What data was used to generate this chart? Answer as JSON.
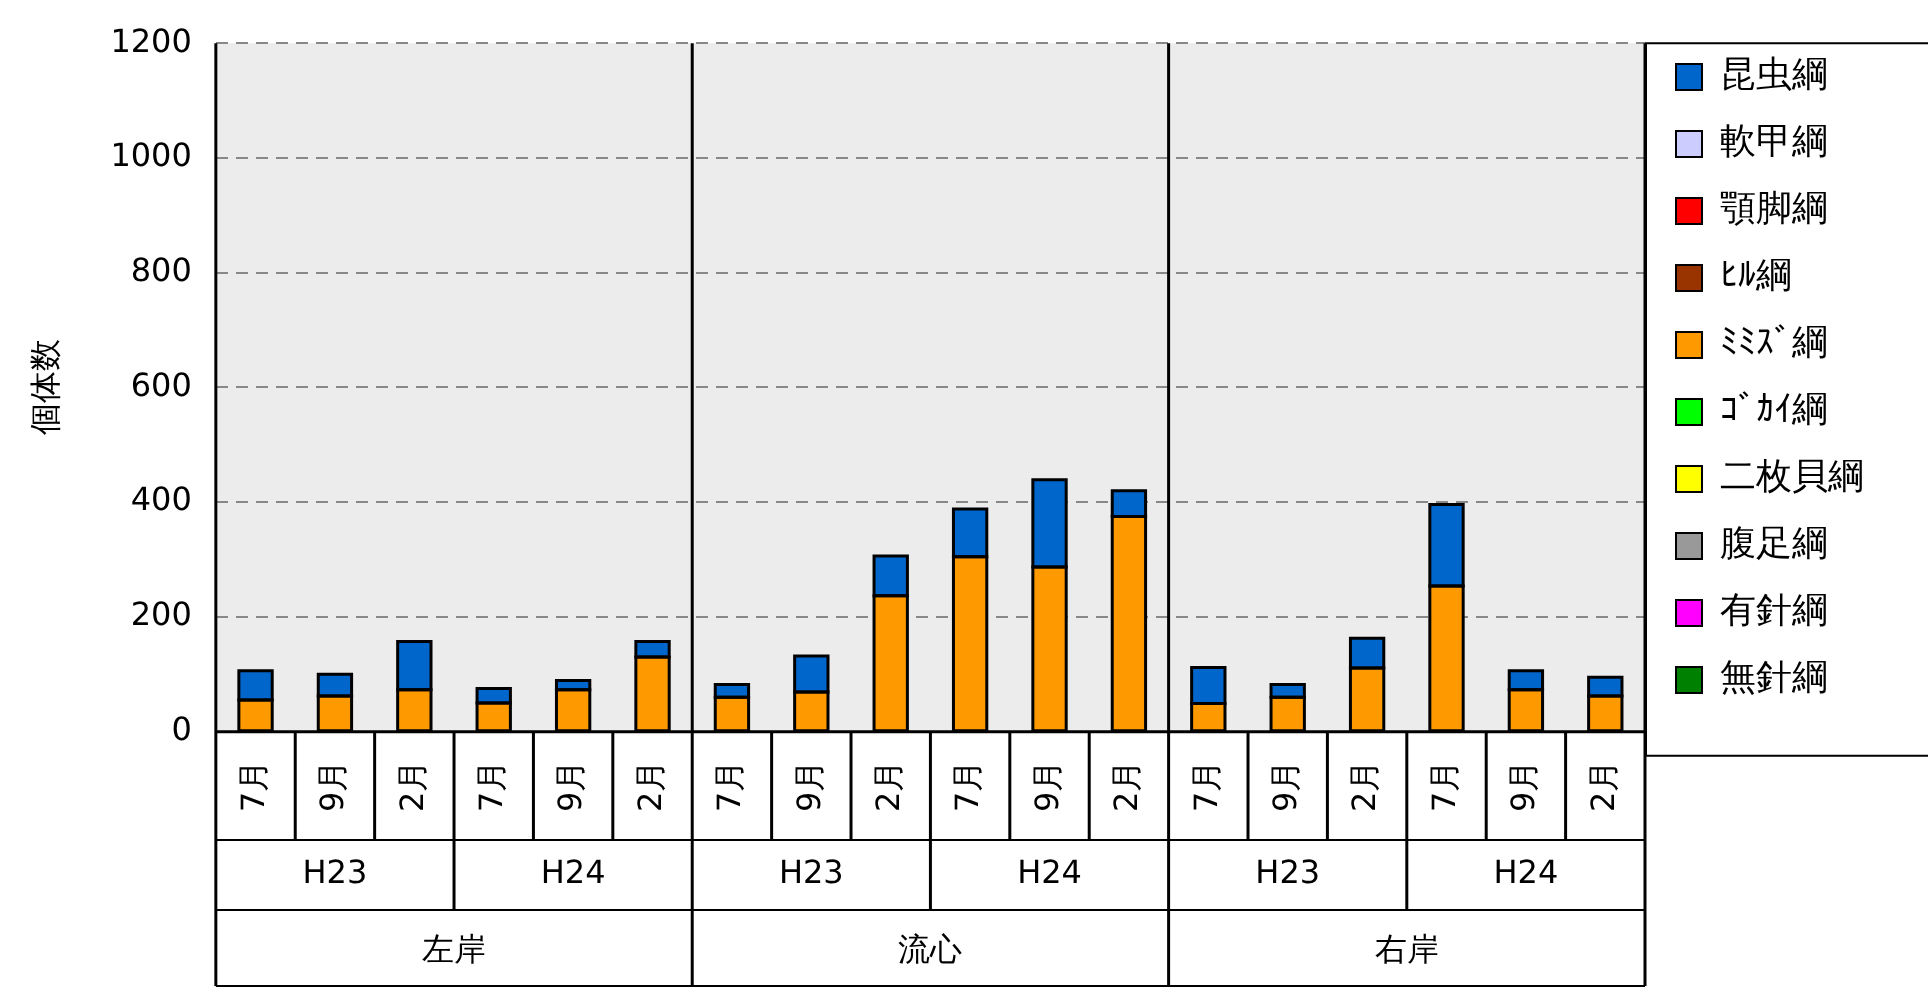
{
  "chart_data": {
    "type": "bar",
    "stacked": true,
    "ylabel": "個体数",
    "categories": [
      "7月",
      "9月",
      "2月",
      "7月",
      "9月",
      "2月",
      "7月",
      "9月",
      "2月",
      "7月",
      "9月",
      "2月",
      "7月",
      "9月",
      "2月",
      "7月",
      "9月",
      "2月"
    ],
    "annotations": [
      "H23",
      "H24",
      "H23",
      "H24",
      "H23",
      "H24",
      "左岸",
      "流心",
      "右岸"
    ],
    "ylim": [
      0,
      1200
    ],
    "yticks": [
      0,
      200,
      400,
      600,
      800,
      1000,
      1200
    ],
    "grid": "y",
    "legend": "right",
    "series": [
      {
        "name": "無針綱",
        "color": "#008000",
        "values": [
          0,
          0,
          0,
          0,
          0,
          0,
          0,
          0,
          0,
          0,
          0,
          0,
          0,
          0,
          0,
          0,
          0,
          0
        ]
      },
      {
        "name": "有針綱",
        "color": "#ff00ff",
        "values": [
          0,
          0,
          0,
          0,
          0,
          0,
          0,
          0,
          0,
          0,
          0,
          0,
          0,
          0,
          0,
          0,
          0,
          0
        ]
      },
      {
        "name": "腹足綱",
        "color": "#999999",
        "values": [
          0,
          0,
          0,
          0,
          0,
          0,
          0,
          0,
          0,
          0,
          0,
          0,
          0,
          0,
          0,
          0,
          0,
          0
        ]
      },
      {
        "name": "二枚貝綱",
        "color": "#ffff00",
        "values": [
          0,
          0,
          0,
          0,
          0,
          0,
          0,
          0,
          0,
          0,
          0,
          0,
          0,
          0,
          0,
          0,
          0,
          0
        ]
      },
      {
        "name": "ｺﾞｶｲ綱",
        "color": "#00ff00",
        "values": [
          0,
          0,
          0,
          0,
          0,
          0,
          0,
          0,
          0,
          0,
          0,
          0,
          0,
          0,
          0,
          0,
          0,
          0
        ]
      },
      {
        "name": "ﾐﾐｽﾞ綱",
        "color": "#ff9900",
        "values": [
          55,
          62,
          73,
          50,
          73,
          130,
          60,
          69,
          237,
          305,
          287,
          375,
          49,
          60,
          111,
          254,
          73,
          62
        ]
      },
      {
        "name": "ﾋﾙ綱",
        "color": "#993300",
        "values": [
          0,
          0,
          0,
          0,
          0,
          0,
          0,
          0,
          0,
          0,
          0,
          0,
          0,
          0,
          0,
          0,
          0,
          0
        ]
      },
      {
        "name": "顎脚綱",
        "color": "#ff0000",
        "values": [
          0,
          0,
          0,
          0,
          0,
          0,
          0,
          0,
          0,
          0,
          0,
          0,
          0,
          0,
          0,
          0,
          0,
          0
        ]
      },
      {
        "name": "軟甲綱",
        "color": "#ccccff",
        "values": [
          0,
          0,
          0,
          0,
          0,
          0,
          0,
          0,
          0,
          0,
          0,
          0,
          0,
          0,
          0,
          0,
          0,
          0
        ]
      },
      {
        "name": "昆虫綱",
        "color": "#0066cc",
        "values": [
          51,
          38,
          84,
          25,
          16,
          27,
          22,
          63,
          69,
          83,
          152,
          45,
          63,
          22,
          52,
          142,
          33,
          33
        ]
      }
    ]
  }
}
